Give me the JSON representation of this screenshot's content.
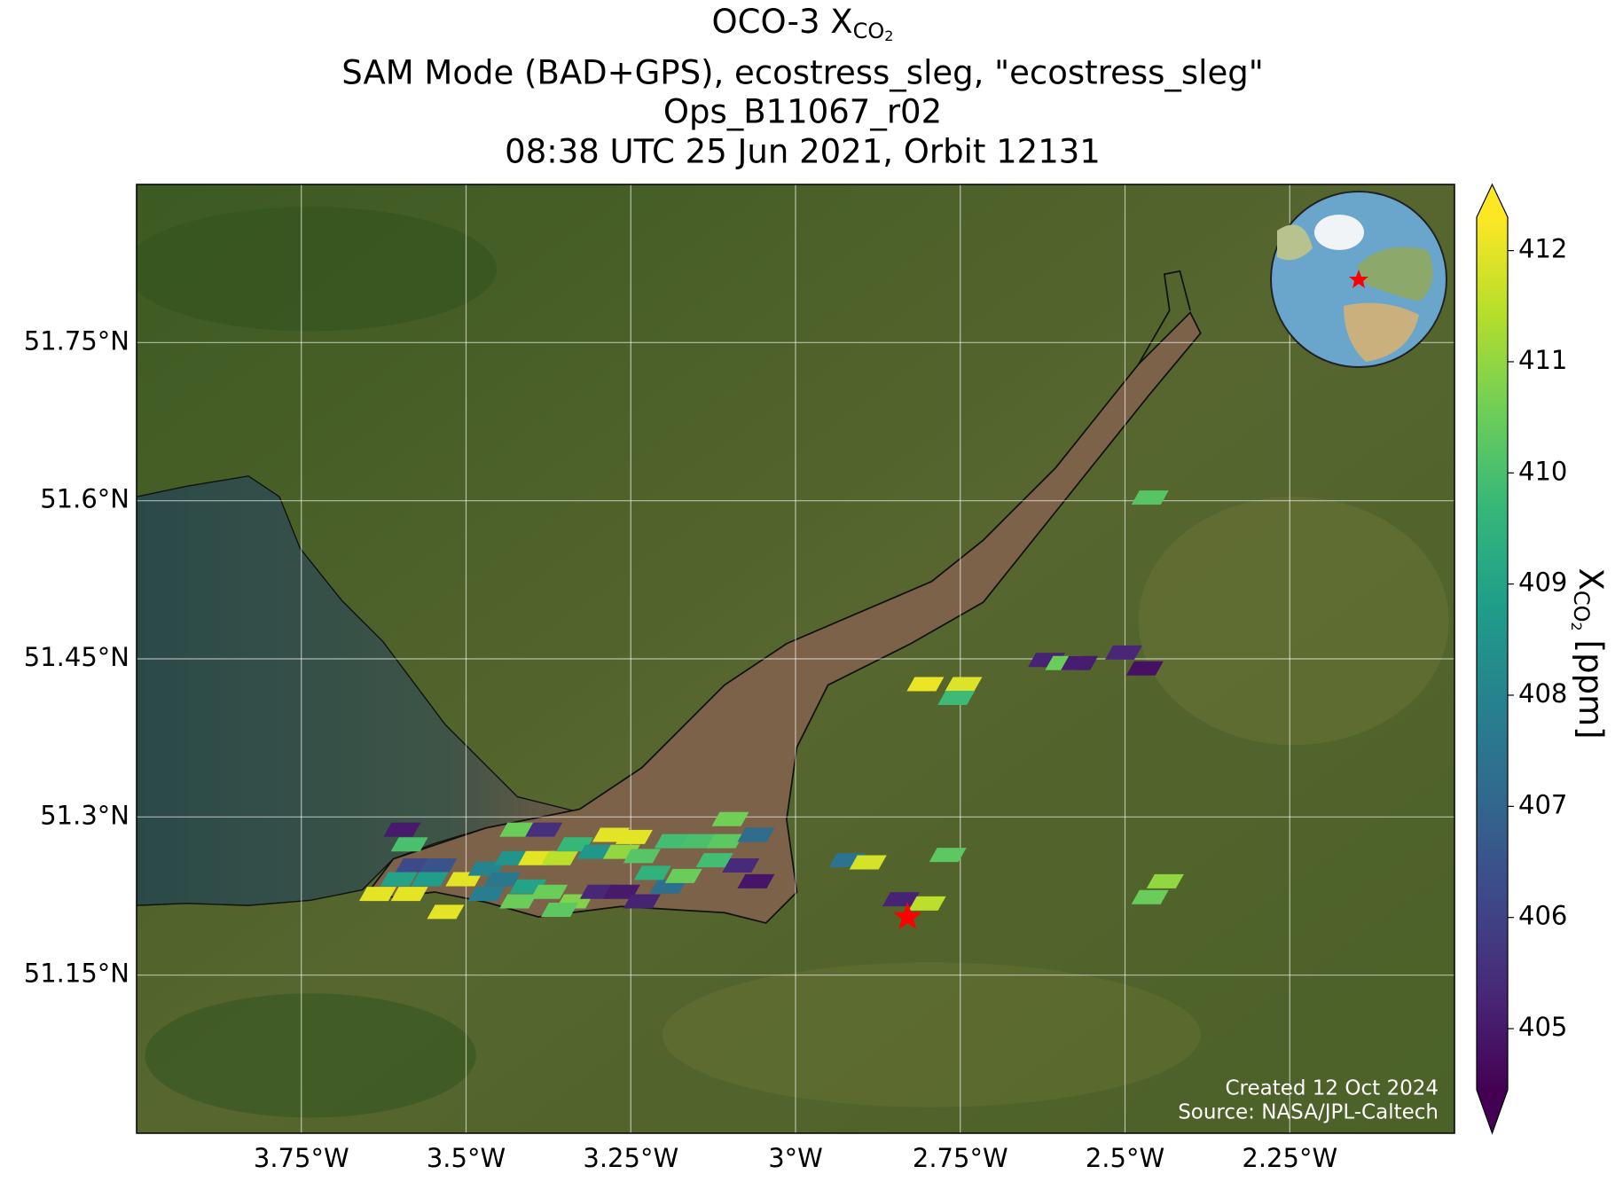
{
  "chart_data": {
    "type": "map",
    "title": {
      "line1": "OCO-3 X",
      "line1_sub": "CO",
      "line1_subsub": "2",
      "line2": "SAM Mode (BAD+GPS), ecostress_sleg, \"ecostress_sleg\"",
      "line3": "Ops_B11067_r02",
      "line4": "08:38 UTC 25 Jun 2021, Orbit 12131"
    },
    "xlim": [
      -4.0,
      -2.0
    ],
    "ylim": [
      51.0,
      51.9
    ],
    "xticks": [
      {
        "value": -3.75,
        "label": "3.75°W"
      },
      {
        "value": -3.5,
        "label": "3.5°W"
      },
      {
        "value": -3.25,
        "label": "3.25°W"
      },
      {
        "value": -3.0,
        "label": "3°W"
      },
      {
        "value": -2.75,
        "label": "2.75°W"
      },
      {
        "value": -2.5,
        "label": "2.5°W"
      },
      {
        "value": -2.25,
        "label": "2.25°W"
      }
    ],
    "yticks": [
      {
        "value": 51.75,
        "label": "51.75°N"
      },
      {
        "value": 51.6,
        "label": "51.6°N"
      },
      {
        "value": 51.45,
        "label": "51.45°N"
      },
      {
        "value": 51.3,
        "label": "51.3°N"
      },
      {
        "value": 51.15,
        "label": "51.15°N"
      }
    ],
    "grid": true,
    "colormap": "viridis",
    "clim": [
      404.45,
      412.3
    ],
    "colorbar_ticks": [
      405,
      406,
      407,
      408,
      409,
      410,
      411,
      412
    ],
    "colorbar_label": {
      "symbol": "X",
      "sub": "CO",
      "subsub": "2",
      "units": "[ppm]"
    },
    "soundings": {
      "lon": [
        -2.462,
        -2.619,
        -2.593,
        -2.569,
        -2.502,
        -2.47,
        -2.803,
        -2.745,
        -2.756,
        -2.769,
        -2.921,
        -2.89,
        -2.84,
        -2.8,
        -2.462,
        -2.439,
        -3.597,
        -3.586,
        -3.579,
        -3.542,
        -3.634,
        -3.586,
        -3.531,
        -3.602,
        -3.555,
        -3.503,
        -3.469,
        -3.429,
        -3.421,
        -3.382,
        -3.393,
        -3.358,
        -3.335,
        -3.28,
        -3.245,
        -3.303,
        -3.264,
        -3.233,
        -3.445,
        -3.406,
        -3.374,
        -3.335,
        -3.299,
        -3.264,
        -3.233,
        -3.193,
        -3.17,
        -3.217,
        -3.186,
        -3.146,
        -3.107,
        -3.123,
        -3.083,
        -3.06,
        -3.099,
        -3.06,
        -3.421,
        -3.358,
        -3.469
      ],
      "lat": [
        51.603,
        51.449,
        51.446,
        51.446,
        51.456,
        51.441,
        51.426,
        51.426,
        51.413,
        51.264,
        51.259,
        51.257,
        51.222,
        51.218,
        51.224,
        51.239,
        51.288,
        51.274,
        51.254,
        51.254,
        51.227,
        51.227,
        51.21,
        51.241,
        51.241,
        51.241,
        51.251,
        51.261,
        51.288,
        51.288,
        51.261,
        51.261,
        51.274,
        51.283,
        51.281,
        51.267,
        51.267,
        51.263,
        51.241,
        51.234,
        51.229,
        51.22,
        51.229,
        51.229,
        51.22,
        51.234,
        51.244,
        51.247,
        51.277,
        51.277,
        51.277,
        51.259,
        51.254,
        51.239,
        51.298,
        51.283,
        51.22,
        51.212,
        51.227
      ],
      "xco2": [
        410.2,
        405.2,
        410.5,
        405.1,
        405.3,
        404.8,
        412.1,
        411.9,
        409.8,
        410.3,
        407.4,
        411.8,
        405.2,
        411.5,
        410.5,
        411.0,
        405.0,
        410.0,
        406.2,
        406.5,
        412.0,
        412.0,
        412.0,
        409.0,
        408.8,
        412.0,
        408.0,
        408.5,
        410.5,
        405.5,
        412.0,
        411.5,
        409.7,
        412.0,
        412.0,
        408.6,
        411.0,
        410.2,
        407.6,
        409.0,
        410.5,
        410.8,
        405.3,
        405.0,
        405.2,
        407.3,
        410.5,
        409.5,
        409.9,
        410.0,
        410.3,
        409.9,
        405.4,
        404.9,
        410.6,
        407.2,
        410.5,
        410.3,
        407.8
      ]
    },
    "target": {
      "lon": -2.83,
      "lat": 51.205,
      "color": "#ff0000"
    },
    "credits": [
      "Created 12 Oct 2024",
      "Source: NASA/JPL-Caltech"
    ]
  }
}
